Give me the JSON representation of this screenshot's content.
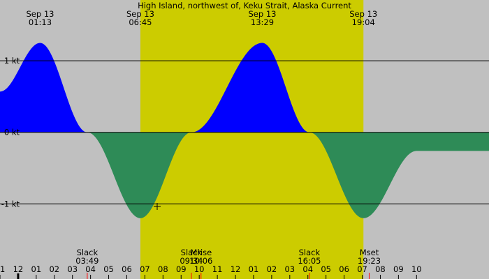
{
  "chart_data": {
    "type": "area",
    "title": "High Island, northwest of, Keku Strait, Alaska Current",
    "xlabel": "",
    "ylabel": "",
    "ylim": [
      -2.05,
      1.85
    ],
    "x_range_hours": [
      -1.0,
      26.0
    ],
    "grid": true,
    "colors": {
      "background": "#c0c0c0",
      "daylight": "#cccc00",
      "flood": "#0000ff",
      "ebb": "#2e8b57",
      "event_tick": "#ff0000"
    },
    "daylight": {
      "start_hour": 6.75,
      "end_hour": 19.0667
    },
    "y_ticks": [
      {
        "value": 1,
        "label": "1 kt"
      },
      {
        "value": 0,
        "label": "0 kt"
      },
      {
        "value": -1,
        "label": "-1 kt"
      }
    ],
    "x_ticks": [
      {
        "hour": -1,
        "label": "11"
      },
      {
        "hour": 0,
        "label": "12"
      },
      {
        "hour": 1,
        "label": "01"
      },
      {
        "hour": 2,
        "label": "02"
      },
      {
        "hour": 3,
        "label": "03"
      },
      {
        "hour": 4,
        "label": "04"
      },
      {
        "hour": 5,
        "label": "05"
      },
      {
        "hour": 6,
        "label": "06"
      },
      {
        "hour": 7,
        "label": "07"
      },
      {
        "hour": 8,
        "label": "08"
      },
      {
        "hour": 9,
        "label": "09"
      },
      {
        "hour": 10,
        "label": "10"
      },
      {
        "hour": 11,
        "label": "11"
      },
      {
        "hour": 12,
        "label": "12"
      },
      {
        "hour": 13,
        "label": "01"
      },
      {
        "hour": 14,
        "label": "02"
      },
      {
        "hour": 15,
        "label": "03"
      },
      {
        "hour": 16,
        "label": "04"
      },
      {
        "hour": 17,
        "label": "05"
      },
      {
        "hour": 18,
        "label": "06"
      },
      {
        "hour": 19,
        "label": "07"
      },
      {
        "hour": 20,
        "label": "08"
      },
      {
        "hour": 21,
        "label": "09"
      },
      {
        "hour": 22,
        "label": "10"
      }
    ],
    "top_labels": [
      {
        "hour": 1.2167,
        "date": "Sep 13",
        "time": "01:13"
      },
      {
        "hour": 6.75,
        "date": "Sep 13",
        "time": "06:45"
      },
      {
        "hour": 13.4833,
        "date": "Sep 13",
        "time": "13:29"
      },
      {
        "hour": 19.0667,
        "date": "Sep 13",
        "time": "19:04"
      }
    ],
    "events": [
      {
        "hour": 3.8167,
        "label": "Slack",
        "time": "03:49"
      },
      {
        "hour": 9.5667,
        "label": "Slack",
        "time": "09:34"
      },
      {
        "hour": 10.1,
        "label": "Mrise",
        "time": "10:06"
      },
      {
        "hour": 16.0833,
        "label": "Slack",
        "time": "16:05"
      },
      {
        "hour": 19.3833,
        "label": "Mset",
        "time": "19:23"
      }
    ],
    "series": [
      {
        "values": [
          {
            "x": -1.0,
            "y": 0.57
          },
          {
            "x": 1.2167,
            "y": 1.25
          },
          {
            "x": 3.8167,
            "y": 0.0
          },
          {
            "x": 6.75,
            "y": -1.2
          },
          {
            "x": 9.5667,
            "y": 0.0
          },
          {
            "x": 13.4833,
            "y": 1.25
          },
          {
            "x": 16.0833,
            "y": 0.0
          },
          {
            "x": 19.0667,
            "y": -1.2
          },
          {
            "x": 22.0,
            "y": -0.26
          }
        ]
      }
    ]
  }
}
